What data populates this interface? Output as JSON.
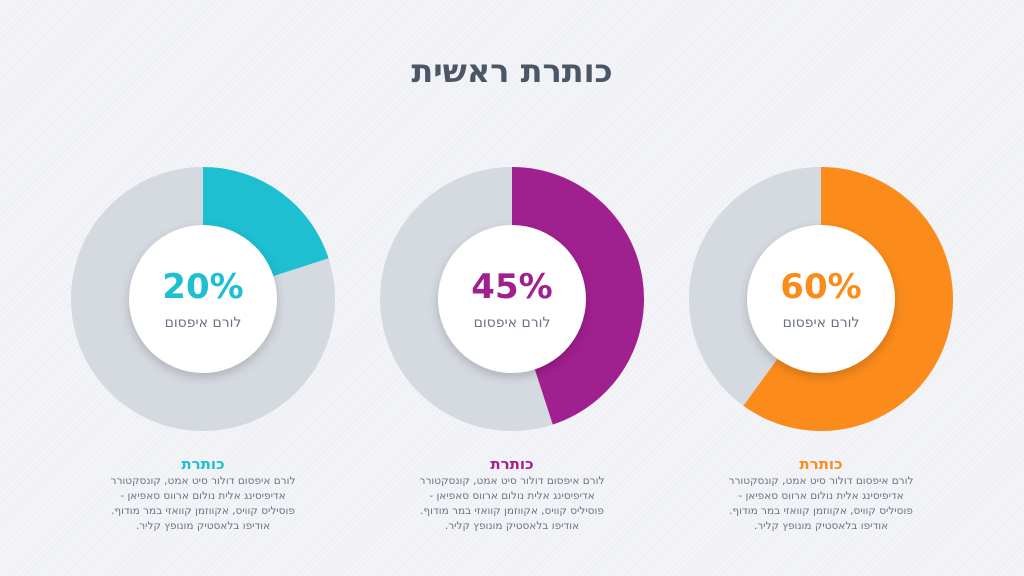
{
  "title": "כותרת ראשית",
  "chart_data": {
    "type": "pie",
    "series": [
      {
        "name": "",
        "value": 20,
        "display": "20%",
        "label": "לורם איפסום",
        "color": "#1dbfd1"
      },
      {
        "name": "",
        "value": 45,
        "display": "45%",
        "label": "לורם איפסום",
        "color": "#a0208f"
      },
      {
        "name": "",
        "value": 60,
        "display": "60%",
        "label": "לורם איפסום",
        "color": "#fb8c1c"
      }
    ],
    "track_color": "#d5d9e0"
  },
  "cards": [
    {
      "heading": "כותרת",
      "color": "#1dbfd1",
      "lines": [
        "לורם איפסום דולור סיט אמט, קונסקטורר",
        "אדיפיסינג אלית נולום ארווס סאפיאן -",
        "פוסיליס קוויס, אקווזמן קוואזי במר מודוף.",
        "אודיפו בלאסטיק מונופץ קליר."
      ]
    },
    {
      "heading": "כותרת",
      "color": "#a0208f",
      "lines": [
        "לורם איפסום דולור סיט אמט, קונסקטורר",
        "אדיפיסינג אלית נולום ארווס סאפיאן -",
        "פוסיליס קוויס, אקווזמן קוואזי במר מודוף.",
        "אודיפו בלאסטיק מונופץ קליר."
      ]
    },
    {
      "heading": "כותרת",
      "color": "#fb8c1c",
      "lines": [
        "לורם איפסום דולור סיט אמט, קונסקטורר",
        "אדיפיסינג אלית נולום ארווס סאפיאן -",
        "פוסיליס קוויס, אקווזמן קוואזי במר מודוף.",
        "אודיפו בלאסטיק מונופץ קליר."
      ]
    }
  ]
}
